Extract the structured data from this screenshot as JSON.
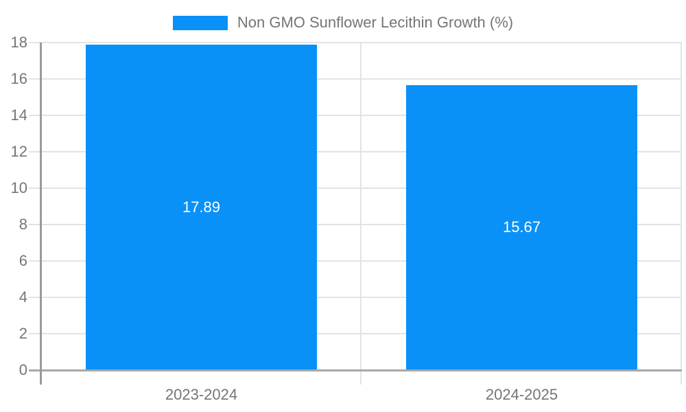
{
  "chart_data": {
    "type": "bar",
    "title": "Non GMO Sunflower Lecithin Growth (%)",
    "categories": [
      "2023-2024",
      "2024-2025"
    ],
    "values": [
      17.89,
      15.67
    ],
    "value_labels": [
      "17.89",
      "15.67"
    ],
    "xlabel": "",
    "ylabel": "",
    "ylim": [
      0,
      18
    ],
    "ytick_step": 2,
    "ytick_labels": [
      "0",
      "2",
      "4",
      "6",
      "8",
      "10",
      "12",
      "14",
      "16",
      "18"
    ],
    "grid": true,
    "legend_position": "top-center",
    "bar_color": "#0991f7",
    "value_label_color": "#ffffff",
    "axis_label_color": "#757575",
    "grid_color": "#e3e3e3",
    "x_axis_color": "#a8a8a8",
    "y_axis_color": "#9a9a9a"
  }
}
